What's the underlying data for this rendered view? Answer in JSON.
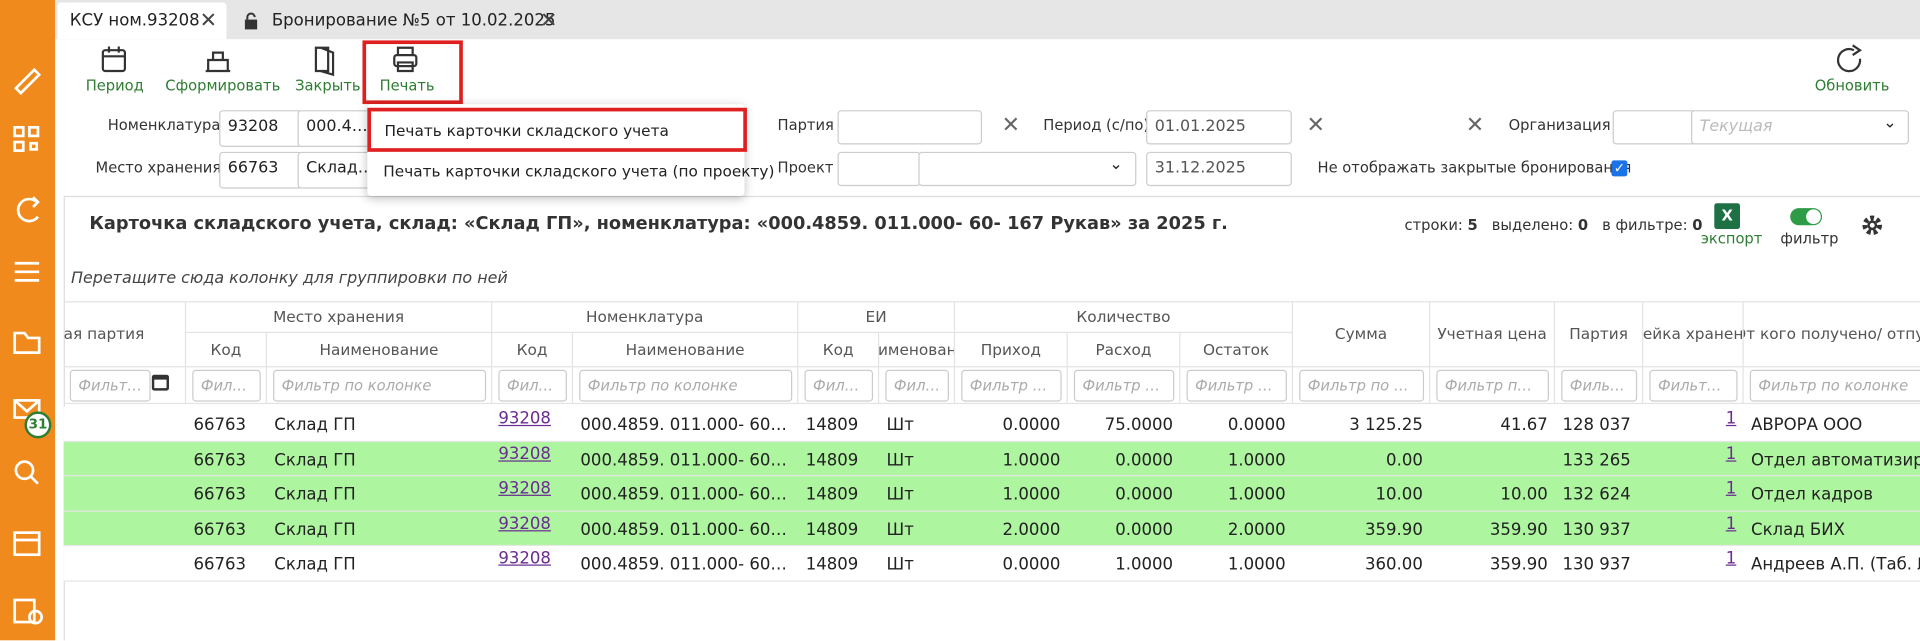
{
  "tabs": [
    "КСУ ном.93208",
    "Бронирование №5 от 10.02.2025"
  ],
  "sidebar": {
    "badge": "31"
  },
  "toolbar": {
    "buttons": [
      "Период",
      "Сформировать",
      "Закрыть",
      "Печать"
    ],
    "refresh": "Обновить"
  },
  "print_menu": [
    "Печать карточки складского учета",
    "Печать карточки складского учета (по проекту)"
  ],
  "filters": {
    "nomenclature_label": "Номенклатура",
    "nomenclature_code": "93208",
    "nomenclature_name": "000.4859. 011.000- 60- 167 Рукав",
    "storage_label": "Место хранения",
    "storage_code": "66763",
    "storage_name": "Склад ГП",
    "party_label": "Партия",
    "period_label": "Период (с/по)",
    "period_from": "01.01.2025",
    "period_to": "31.12.2025",
    "project_label": "Проект",
    "organization_label": "Организация",
    "organization_placeholder": "Текущая",
    "hide_closed_label": "Не отображать закрытые бронирования"
  },
  "card": {
    "title": "Карточка складского учета, склад: «Склад ГП», номенклатура: «000.4859. 011.000- 60- 167 Рукав» за 2025 г.",
    "rows_label": "строки:",
    "rows_value": "5",
    "selected_label": "выделено:",
    "selected_value": "0",
    "filtered_label": "в фильтре:",
    "filtered_value": "0",
    "export": "экспорт",
    "filter": "фильтр",
    "group_hint": "Перетащите сюда колонку для группировки по ней"
  },
  "table": {
    "groups": [
      "Место хранения",
      "Номенклатура",
      "ЕИ",
      "Количество"
    ],
    "columns": [
      "ая партия",
      "Код",
      "Наименование",
      "Код",
      "Наименование",
      "Код",
      "Наименование",
      "Приход",
      "Расход",
      "Остаток",
      "Сумма",
      "Учетная цена",
      "Партия",
      "Ячейка хранения",
      "От кого получено/ отпущено"
    ],
    "filter_placeholder": "Фильтр по колонке",
    "rows": [
      [
        "66763",
        "Склад ГП",
        "93208",
        "000.4859. 011.000- 60- 167 Рукав",
        "14809",
        "Шт",
        "0.0000",
        "75.0000",
        "0.0000",
        "3 125.25",
        "41.67",
        "128 037",
        "1",
        "АВРОРА ООО"
      ],
      [
        "66763",
        "Склад ГП",
        "93208",
        "000.4859. 011.000- 60- 167 Рукав",
        "14809",
        "Шт",
        "1.0000",
        "0.0000",
        "1.0000",
        "0.00",
        null,
        "133 265",
        "1",
        "Отдел автоматизированных систем"
      ],
      [
        "66763",
        "Склад ГП",
        "93208",
        "000.4859. 011.000- 60- 167 Рукав",
        "14809",
        "Шт",
        "1.0000",
        "0.0000",
        "1.0000",
        "10.00",
        "10.00",
        "132 624",
        "1",
        "Отдел кадров"
      ],
      [
        "66763",
        "Склад ГП",
        "93208",
        "000.4859. 011.000- 60- 167 Рукав",
        "14809",
        "Шт",
        "2.0000",
        "0.0000",
        "2.0000",
        "359.90",
        "359.90",
        "130 937",
        "1",
        "Склад БИХ"
      ],
      [
        "66763",
        "Склад ГП",
        "93208",
        "000.4859. 011.000- 60- 167 Рукав",
        "14809",
        "Шт",
        "0.0000",
        "1.0000",
        "1.0000",
        "360.00",
        "359.90",
        "130 937",
        "1",
        "Андреев А.П. (Таб. №"
      ]
    ]
  }
}
